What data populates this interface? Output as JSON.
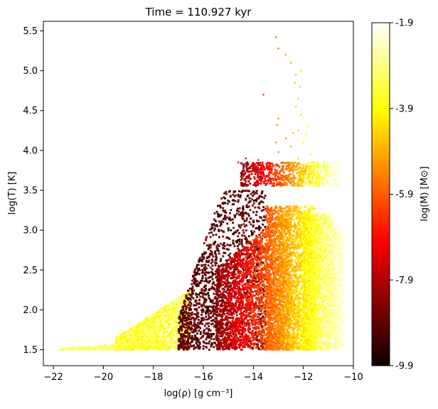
{
  "chart_data": {
    "type": "scatter",
    "title": "Time = 110.927 kyr",
    "xlabel": "log(ρ) [g cm⁻³]",
    "ylabel": "log(T) [K]",
    "xlim": [
      -22.4,
      -10.0
    ],
    "ylim": [
      1.3,
      5.62
    ],
    "xticks": [
      -22,
      -20,
      -18,
      -16,
      -14,
      -12,
      -10
    ],
    "yticks": [
      1.5,
      2.0,
      2.5,
      3.0,
      3.5,
      4.0,
      4.5,
      5.0,
      5.5
    ],
    "grid": false,
    "legend": "none",
    "colorbar": {
      "label": "log(M) [M⊙]",
      "colormap": "hot",
      "range": [
        -9.9,
        -1.9
      ],
      "ticks": [
        -9.9,
        -7.9,
        -5.9,
        -3.9,
        -1.9
      ]
    },
    "regions": [
      {
        "name": "cold-low-density-tail",
        "x_range": [
          -21.8,
          -17.5
        ],
        "y_range": [
          1.5,
          1.65
        ],
        "log_mass": -3.0
      },
      {
        "name": "yellow-low-density-wedge",
        "x_range": [
          -19.5,
          -16.5
        ],
        "y_range": [
          1.55,
          2.2
        ],
        "log_mass": -3.5
      },
      {
        "name": "dark-red-clumps",
        "x_range": [
          -17.0,
          -13.5
        ],
        "y_range": [
          1.5,
          3.1
        ],
        "log_mass": -9.0
      },
      {
        "name": "red-main-body",
        "x_range": [
          -15.5,
          -12.5
        ],
        "y_range": [
          1.5,
          3.3
        ],
        "log_mass": -7.0
      },
      {
        "name": "orange-dense-body",
        "x_range": [
          -13.5,
          -11.5
        ],
        "y_range": [
          1.5,
          3.3
        ],
        "log_mass": -5.0
      },
      {
        "name": "yellow-dense-edge",
        "x_range": [
          -12.0,
          -10.4
        ],
        "y_range": [
          1.5,
          3.2
        ],
        "log_mass": -2.6
      },
      {
        "name": "warm-band-3.7",
        "x_range": [
          -14.5,
          -10.5
        ],
        "y_range": [
          3.55,
          3.85
        ],
        "log_mass": -5.0
      }
    ],
    "sparse_points": [
      [
        -13.1,
        5.42
      ],
      [
        -13.0,
        5.28
      ],
      [
        -12.7,
        5.2
      ],
      [
        -12.5,
        5.1
      ],
      [
        -12.1,
        5.0
      ],
      [
        -12.3,
        4.95
      ],
      [
        -12.35,
        4.85
      ],
      [
        -12.15,
        4.8
      ],
      [
        -13.6,
        4.7
      ],
      [
        -12.2,
        4.65
      ],
      [
        -12.3,
        4.55
      ],
      [
        -12.1,
        4.45
      ],
      [
        -13.0,
        4.4
      ],
      [
        -13.05,
        4.32
      ],
      [
        -11.8,
        4.3
      ],
      [
        -12.2,
        4.25
      ],
      [
        -12.4,
        4.22
      ],
      [
        -11.9,
        4.2
      ],
      [
        -12.7,
        4.15
      ],
      [
        -13.1,
        4.1
      ],
      [
        -12.0,
        4.1
      ],
      [
        -12.5,
        4.05
      ],
      [
        -13.0,
        3.98
      ],
      [
        -11.7,
        3.95
      ],
      [
        -14.3,
        3.9
      ],
      [
        -13.8,
        3.88
      ],
      [
        -12.2,
        3.9
      ],
      [
        -14.6,
        3.85
      ],
      [
        -13.4,
        3.82
      ],
      [
        -11.9,
        3.82
      ]
    ]
  }
}
